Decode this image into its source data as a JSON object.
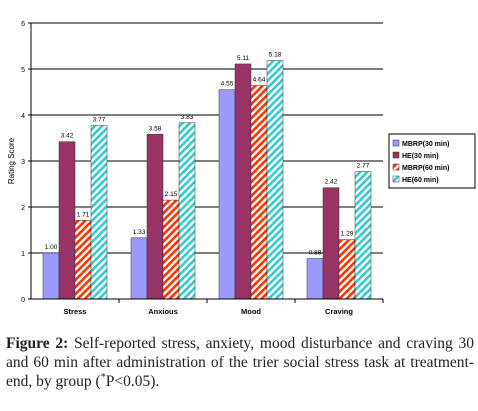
{
  "chart_data": {
    "type": "bar",
    "title": "",
    "xlabel": "",
    "ylabel": "Rating Score",
    "ylim": [
      0,
      6
    ],
    "yticks": [
      "0",
      "1",
      "2",
      "3",
      "4",
      "5",
      "6"
    ],
    "grid": true,
    "legend_position": "right",
    "categories": [
      "Stress",
      "Anxious",
      "Mood",
      "Craving"
    ],
    "series": [
      {
        "name": "MBRP(30 min)",
        "values": [
          1.0,
          1.33,
          4.55,
          0.88
        ],
        "labels": [
          "1.00",
          "1.33",
          "4.55",
          "0.88"
        ],
        "color": "#9999ff",
        "pattern": "solid"
      },
      {
        "name": "HE(30 min)",
        "values": [
          3.42,
          3.58,
          5.11,
          2.42
        ],
        "labels": [
          "3.42",
          "3.58",
          "5.11",
          "2.42"
        ],
        "color": "#993366",
        "pattern": "solid"
      },
      {
        "name": "MBRP(60 min)",
        "values": [
          1.71,
          2.15,
          4.64,
          1.29
        ],
        "labels": [
          "1.71",
          "2.15",
          "4.64",
          "1.29"
        ],
        "color": "#ff3300",
        "pattern": "hatch"
      },
      {
        "name": "HE(60 min)",
        "values": [
          3.77,
          3.83,
          5.18,
          2.77
        ],
        "labels": [
          "3.77",
          "3.83",
          "5.18",
          "2.77"
        ],
        "color": "#33cccc",
        "pattern": "hatch"
      }
    ]
  },
  "caption": {
    "label": "Figure 2:",
    "text_before": " Self-reported stress, anxiety, mood disturbance and craving 30 and 60 min after administration of the trier social stress task at treatment-end, by group (",
    "sup": "*",
    "text_after": "P<0.05)."
  }
}
